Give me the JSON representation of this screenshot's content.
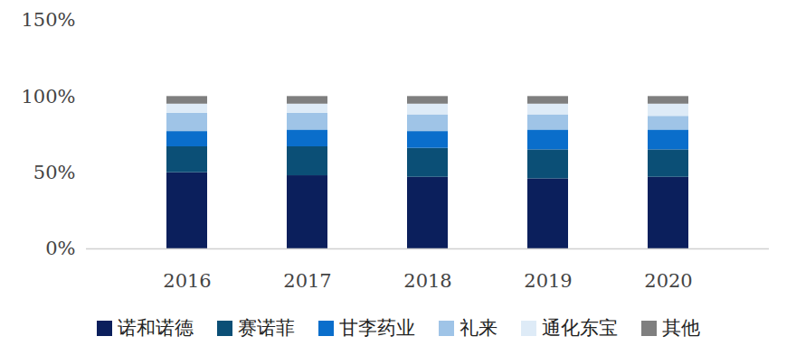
{
  "chart_data": {
    "type": "bar",
    "stacked": true,
    "categories": [
      "2016",
      "2017",
      "2018",
      "2019",
      "2020"
    ],
    "series": [
      {
        "name": "诺和诺德",
        "color": "#0b1f5c",
        "values": [
          50,
          48,
          47,
          46,
          47
        ]
      },
      {
        "name": "赛诺菲",
        "color": "#0b4f76",
        "values": [
          17,
          19,
          19,
          19,
          18
        ]
      },
      {
        "name": "甘李药业",
        "color": "#0a6ecb",
        "values": [
          10,
          11,
          11,
          13,
          13
        ]
      },
      {
        "name": "礼来",
        "color": "#9fc4e7",
        "values": [
          12,
          11,
          11,
          10,
          9
        ]
      },
      {
        "name": "通化东宝",
        "color": "#deebf7",
        "values": [
          6,
          6,
          7,
          7,
          8
        ]
      },
      {
        "name": "其他",
        "color": "#7f7f7f",
        "values": [
          5,
          5,
          5,
          5,
          5
        ]
      }
    ],
    "ylim": [
      0,
      150
    ],
    "yticks": [
      {
        "value": 0,
        "label": "0%"
      },
      {
        "value": 50,
        "label": "50%"
      },
      {
        "value": 100,
        "label": "100%"
      },
      {
        "value": 150,
        "label": "150%"
      }
    ],
    "grid": false,
    "legend": "bottom"
  }
}
